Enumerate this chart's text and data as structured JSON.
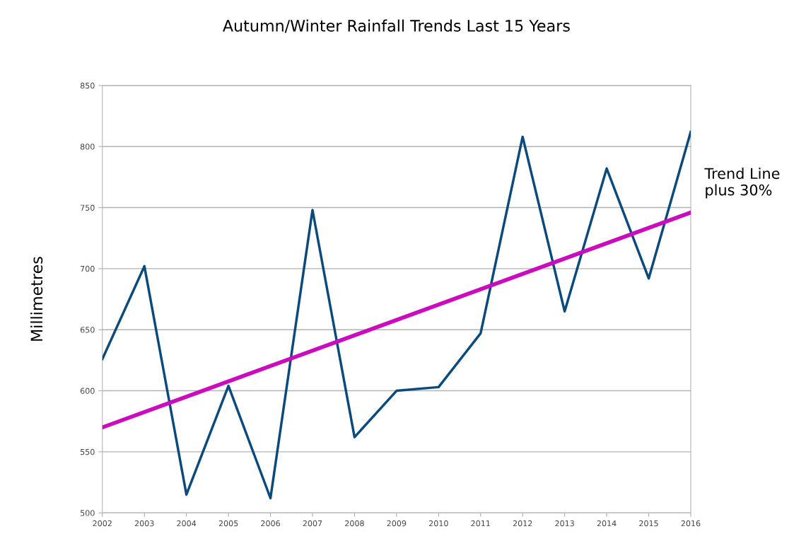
{
  "chart_data": {
    "type": "line",
    "title": "Autumn/Winter Rainfall Trends Last 15 Years",
    "ylabel": "Millimetres",
    "x": [
      2002,
      2003,
      2004,
      2005,
      2006,
      2007,
      2008,
      2009,
      2010,
      2011,
      2012,
      2013,
      2014,
      2015,
      2016
    ],
    "series": [
      {
        "color": "#0b4a7d",
        "values": [
          626,
          702,
          515,
          604,
          512,
          748,
          562,
          600,
          603,
          647,
          808,
          665,
          782,
          692,
          812
        ]
      },
      {
        "name": "Trend Line plus 30%",
        "type": "line",
        "color": "#cc0bbf",
        "x": [
          2002,
          2016
        ],
        "values": [
          570,
          746
        ]
      }
    ],
    "xlim": [
      2002,
      2016
    ],
    "xticks": [
      2002,
      2003,
      2004,
      2005,
      2006,
      2007,
      2008,
      2009,
      2010,
      2011,
      2012,
      2013,
      2014,
      2015,
      2016
    ],
    "ylim": [
      500,
      850
    ],
    "yticks": [
      500,
      550,
      600,
      650,
      700,
      750,
      800,
      850
    ],
    "grid": "y",
    "marker": "none",
    "line_style": "solid"
  }
}
